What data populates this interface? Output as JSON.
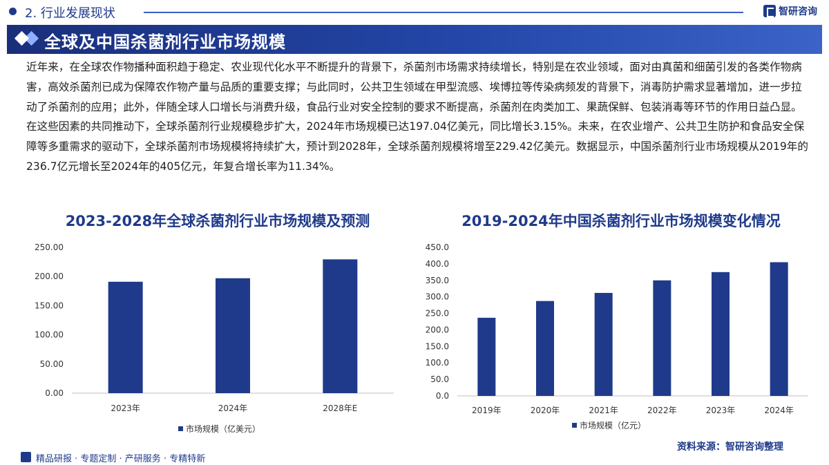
{
  "header": {
    "section_label": "2. 行业发展现状",
    "brand_name": "智研咨询"
  },
  "banner": {
    "title": "全球及中国杀菌剂行业市场规模"
  },
  "intro_paragraph": "近年来，在全球农作物播种面积趋于稳定、农业现代化水平不断提升的背景下，杀菌剂市场需求持续增长，特别是在农业领域，面对由真菌和细菌引发的各类作物病害，高效杀菌剂已成为保障农作物产量与品质的重要支撑；与此同时，公共卫生领域在甲型流感、埃博拉等传染病频发的背景下，消毒防护需求显著增加，进一步拉动了杀菌剂的应用；此外，伴随全球人口增长与消费升级，食品行业对安全控制的要求不断提高，杀菌剂在肉类加工、果蔬保鲜、包装消毒等环节的作用日益凸显。在这些因素的共同推动下，全球杀菌剂行业规模稳步扩大，2024年市场规模已达197.04亿美元，同比增长3.15%。未来，在农业增产、公共卫生防护和食品安全保障等多重需求的驱动下，全球杀菌剂市场规模将持续扩大，预计到2028年，全球杀菌剂规模将增至229.42亿美元。数据显示，中国杀菌剂行业市场规模从2019年的236.7亿元增长至2024年的405亿元，年复合增长率为11.34%。",
  "chart_data": [
    {
      "type": "bar",
      "title": "2023-2028年全球杀菌剂行业市场规模及预测",
      "categories": [
        "2023年",
        "2024年",
        "2028年E"
      ],
      "series": [
        {
          "name": "市场规模（亿美元）",
          "values": [
            191.02,
            197.04,
            229.42
          ]
        }
      ],
      "ylim": [
        0,
        250
      ],
      "yticks": [
        "0.00",
        "50.00",
        "100.00",
        "150.00",
        "200.00",
        "250.00"
      ],
      "ytick_values": [
        0,
        50,
        100,
        150,
        200,
        250
      ],
      "grid": false,
      "legend": "bottom",
      "bar_color": "#1f3a8a"
    },
    {
      "type": "bar",
      "title": "2019-2024年中国杀菌剂行业市场规模变化情况",
      "categories": [
        "2019年",
        "2020年",
        "2021年",
        "2022年",
        "2023年",
        "2024年"
      ],
      "series": [
        {
          "name": "市场规模（亿元）",
          "values": [
            236.7,
            287.5,
            312.0,
            350.0,
            375.0,
            405.0
          ]
        }
      ],
      "ylim": [
        0,
        450
      ],
      "yticks": [
        "0.0",
        "50.0",
        "100.0",
        "150.0",
        "200.0",
        "250.0",
        "300.0",
        "350.0",
        "400.0",
        "450.0"
      ],
      "ytick_values": [
        0,
        50,
        100,
        150,
        200,
        250,
        300,
        350,
        400,
        450
      ],
      "grid": false,
      "legend": "bottom",
      "bar_color": "#1f3a8a"
    }
  ],
  "source_note": "资料来源：智研咨询整理",
  "footer": {
    "text": "精品研报 · 专题定制 · 产研服务 · 专精特新"
  }
}
